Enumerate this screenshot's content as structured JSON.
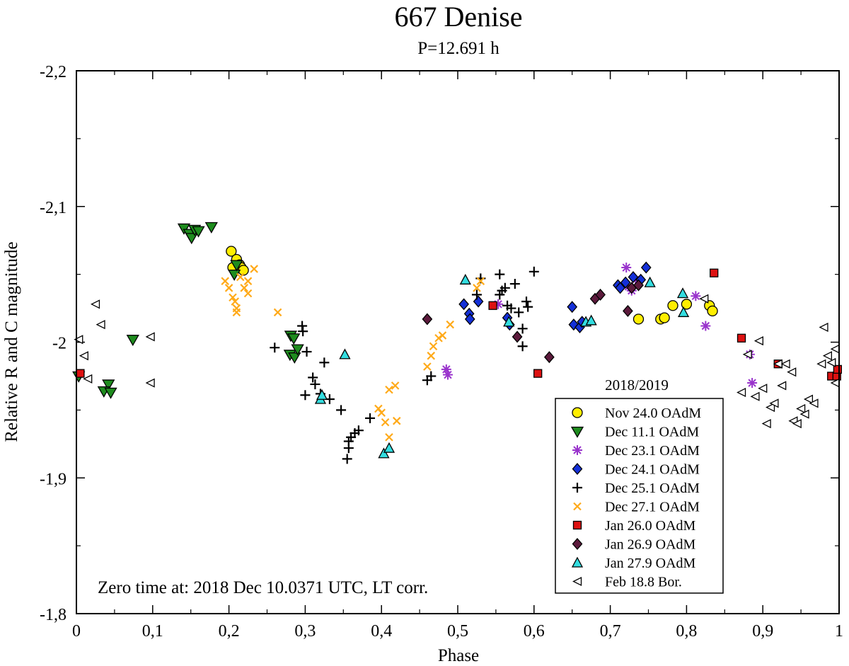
{
  "chart_data": {
    "type": "scatter",
    "title": "667 Denise",
    "subtitle": "P=12.691 h",
    "xlabel": "Phase",
    "ylabel": "Relative R and C magnitude",
    "xlim": [
      0,
      1
    ],
    "ylim": [
      -2.2,
      -1.8
    ],
    "y_inverted_display": true,
    "x_ticks": [
      0,
      0.1,
      0.2,
      0.3,
      0.4,
      0.5,
      0.6,
      0.7,
      0.8,
      0.9,
      1.0
    ],
    "x_tick_labels": [
      "0",
      "0,1",
      "0,2",
      "0,3",
      "0,4",
      "0,5",
      "0,6",
      "0,7",
      "0,8",
      "0,9",
      "1"
    ],
    "y_ticks": [
      -2.2,
      -2.1,
      -2.0,
      -1.9,
      -1.8
    ],
    "y_tick_labels": [
      "-2,2",
      "-2,1",
      "-2",
      "-1,9",
      "-1,8"
    ],
    "annotation": "Zero time at: 2018 Dec 10.0371 UTC, LT corr.",
    "legend": {
      "title": "2018/2019",
      "position": "bottom-right"
    },
    "colors": {
      "yellow": "#ffee00",
      "green": "#1e8c1e",
      "purple": "#9933cc",
      "blue": "#1430d8",
      "black": "#000000",
      "orange": "#ffaa1a",
      "red": "#dd1111",
      "maroon": "#5c1a3c",
      "cyan": "#33dde0",
      "white": "#ffffff"
    },
    "series": [
      {
        "name": "Nov 24.0 OAdM",
        "marker": "circle",
        "color": "#ffee00",
        "points": [
          [
            0.203,
            -2.067
          ],
          [
            0.21,
            -2.061
          ],
          [
            0.214,
            -2.057
          ],
          [
            0.216,
            -2.055
          ],
          [
            0.219,
            -2.053
          ],
          [
            0.205,
            -2.055
          ],
          [
            0.737,
            -2.017
          ],
          [
            0.766,
            -2.017
          ],
          [
            0.771,
            -2.018
          ],
          [
            0.782,
            -2.027
          ],
          [
            0.8,
            -2.028
          ],
          [
            0.83,
            -2.027
          ],
          [
            0.834,
            -2.023
          ]
        ]
      },
      {
        "name": "Dec 11.1 OAdM",
        "marker": "triangle-down",
        "color": "#1e8c1e",
        "points": [
          [
            0.003,
            -1.975
          ],
          [
            0.042,
            -1.969
          ],
          [
            0.036,
            -1.964
          ],
          [
            0.045,
            -1.963
          ],
          [
            0.074,
            -2.002
          ],
          [
            0.141,
            -2.084
          ],
          [
            0.148,
            -2.08
          ],
          [
            0.151,
            -2.077
          ],
          [
            0.155,
            -2.083
          ],
          [
            0.16,
            -2.082
          ],
          [
            0.177,
            -2.085
          ],
          [
            0.207,
            -2.05
          ],
          [
            0.21,
            -2.057
          ],
          [
            0.281,
            -2.005
          ],
          [
            0.285,
            -2.003
          ],
          [
            0.28,
            -1.991
          ],
          [
            0.286,
            -1.989
          ],
          [
            0.29,
            -1.995
          ]
        ]
      },
      {
        "name": "Dec 23.1 OAdM",
        "marker": "asterisk",
        "color": "#9933cc",
        "points": [
          [
            0.485,
            -1.98
          ],
          [
            0.487,
            -1.976
          ],
          [
            0.553,
            -2.028
          ],
          [
            0.721,
            -2.055
          ],
          [
            0.724,
            -2.041
          ],
          [
            0.728,
            -2.038
          ],
          [
            0.733,
            -2.046
          ],
          [
            0.812,
            -2.034
          ],
          [
            0.825,
            -2.012
          ],
          [
            0.883,
            -1.991
          ],
          [
            0.886,
            -1.97
          ]
        ]
      },
      {
        "name": "Dec 24.1 OAdM",
        "marker": "diamond",
        "color": "#1430d8",
        "points": [
          [
            0.508,
            -2.028
          ],
          [
            0.515,
            -2.021
          ],
          [
            0.516,
            -2.017
          ],
          [
            0.527,
            -2.03
          ],
          [
            0.565,
            -2.018
          ],
          [
            0.568,
            -2.013
          ],
          [
            0.65,
            -2.026
          ],
          [
            0.652,
            -2.013
          ],
          [
            0.66,
            -2.011
          ],
          [
            0.663,
            -2.015
          ],
          [
            0.71,
            -2.042
          ],
          [
            0.713,
            -2.04
          ],
          [
            0.72,
            -2.044
          ],
          [
            0.73,
            -2.048
          ],
          [
            0.74,
            -2.046
          ],
          [
            0.747,
            -2.055
          ]
        ]
      },
      {
        "name": "Dec 25.1 OAdM",
        "marker": "plus",
        "color": "#000000",
        "points": [
          [
            0.26,
            -1.996
          ],
          [
            0.296,
            -2.012
          ],
          [
            0.297,
            -2.008
          ],
          [
            0.302,
            -1.993
          ],
          [
            0.31,
            -1.974
          ],
          [
            0.313,
            -1.969
          ],
          [
            0.3,
            -1.961
          ],
          [
            0.32,
            -1.962
          ],
          [
            0.325,
            -1.985
          ],
          [
            0.332,
            -1.958
          ],
          [
            0.347,
            -1.95
          ],
          [
            0.36,
            -1.93
          ],
          [
            0.365,
            -1.933
          ],
          [
            0.37,
            -1.935
          ],
          [
            0.357,
            -1.927
          ],
          [
            0.355,
            -1.914
          ],
          [
            0.357,
            -1.922
          ],
          [
            0.385,
            -1.944
          ],
          [
            0.46,
            -1.972
          ],
          [
            0.465,
            -1.975
          ],
          [
            0.53,
            -2.047
          ],
          [
            0.525,
            -2.035
          ],
          [
            0.555,
            -2.05
          ],
          [
            0.555,
            -2.035
          ],
          [
            0.558,
            -2.038
          ],
          [
            0.562,
            -2.04
          ],
          [
            0.565,
            -2.027
          ],
          [
            0.57,
            -2.025
          ],
          [
            0.575,
            -2.043
          ],
          [
            0.58,
            -2.022
          ],
          [
            0.585,
            -2.01
          ],
          [
            0.585,
            -1.997
          ],
          [
            0.59,
            -2.03
          ],
          [
            0.592,
            -2.026
          ],
          [
            0.6,
            -2.052
          ]
        ]
      },
      {
        "name": "Dec 27.1 OAdM",
        "marker": "x",
        "color": "#ffaa1a",
        "points": [
          [
            0.195,
            -2.045
          ],
          [
            0.2,
            -2.04
          ],
          [
            0.205,
            -2.033
          ],
          [
            0.208,
            -2.03
          ],
          [
            0.21,
            -2.025
          ],
          [
            0.21,
            -2.022
          ],
          [
            0.215,
            -2.048
          ],
          [
            0.22,
            -2.04
          ],
          [
            0.225,
            -2.045
          ],
          [
            0.225,
            -2.036
          ],
          [
            0.233,
            -2.054
          ],
          [
            0.264,
            -2.022
          ],
          [
            0.396,
            -1.951
          ],
          [
            0.4,
            -1.948
          ],
          [
            0.405,
            -1.941
          ],
          [
            0.41,
            -1.965
          ],
          [
            0.41,
            -1.93
          ],
          [
            0.418,
            -1.968
          ],
          [
            0.42,
            -1.942
          ],
          [
            0.46,
            -1.982
          ],
          [
            0.465,
            -1.99
          ],
          [
            0.468,
            -1.997
          ],
          [
            0.475,
            -2.003
          ],
          [
            0.48,
            -2.005
          ],
          [
            0.49,
            -2.013
          ],
          [
            0.525,
            -2.04
          ],
          [
            0.53,
            -2.045
          ]
        ]
      },
      {
        "name": "Jan 26.0 OAdM",
        "marker": "square",
        "color": "#dd1111",
        "points": [
          [
            0.005,
            -1.977
          ],
          [
            0.546,
            -2.027
          ],
          [
            0.605,
            -1.977
          ],
          [
            0.836,
            -2.051
          ],
          [
            0.872,
            -2.003
          ],
          [
            0.92,
            -1.984
          ],
          [
            0.99,
            -1.975
          ],
          [
            0.997,
            -1.975
          ],
          [
            0.998,
            -1.98
          ]
        ]
      },
      {
        "name": "Jan 26.9 OAdM",
        "marker": "diamond",
        "color": "#5c1a3c",
        "points": [
          [
            0.46,
            -2.017
          ],
          [
            0.578,
            -2.004
          ],
          [
            0.62,
            -1.989
          ],
          [
            0.68,
            -2.032
          ],
          [
            0.687,
            -2.035
          ],
          [
            0.723,
            -2.023
          ],
          [
            0.728,
            -2.04
          ],
          [
            0.737,
            -2.042
          ]
        ]
      },
      {
        "name": "Jan 27.9 OAdM",
        "marker": "triangle-up",
        "color": "#33dde0",
        "points": [
          [
            0.32,
            -1.958
          ],
          [
            0.322,
            -1.961
          ],
          [
            0.352,
            -1.991
          ],
          [
            0.403,
            -1.918
          ],
          [
            0.41,
            -1.922
          ],
          [
            0.51,
            -2.046
          ],
          [
            0.567,
            -2.015
          ],
          [
            0.668,
            -2.015
          ],
          [
            0.675,
            -2.016
          ],
          [
            0.752,
            -2.044
          ],
          [
            0.795,
            -2.036
          ],
          [
            0.796,
            -2.022
          ]
        ]
      },
      {
        "name": "Feb 18.8 Bor.",
        "marker": "triangle-left",
        "color": "#ffffff",
        "points": [
          [
            0.003,
            -2.002
          ],
          [
            0.01,
            -1.99
          ],
          [
            0.015,
            -1.973
          ],
          [
            0.025,
            -2.028
          ],
          [
            0.032,
            -2.013
          ],
          [
            0.097,
            -2.004
          ],
          [
            0.097,
            -1.97
          ],
          [
            0.823,
            -2.032
          ],
          [
            0.872,
            -1.963
          ],
          [
            0.88,
            -1.991
          ],
          [
            0.89,
            -1.96
          ],
          [
            0.895,
            -2.001
          ],
          [
            0.9,
            -1.966
          ],
          [
            0.905,
            -1.94
          ],
          [
            0.91,
            -1.952
          ],
          [
            0.915,
            -1.955
          ],
          [
            0.92,
            -1.984
          ],
          [
            0.925,
            -1.968
          ],
          [
            0.93,
            -1.984
          ],
          [
            0.938,
            -1.978
          ],
          [
            0.94,
            -1.942
          ],
          [
            0.945,
            -1.94
          ],
          [
            0.95,
            -1.951
          ],
          [
            0.955,
            -1.947
          ],
          [
            0.96,
            -1.958
          ],
          [
            0.967,
            -1.955
          ],
          [
            0.977,
            -1.984
          ],
          [
            0.98,
            -2.011
          ],
          [
            0.985,
            -1.99
          ],
          [
            0.99,
            -1.985
          ],
          [
            0.995,
            -1.97
          ],
          [
            0.995,
            -1.995
          ]
        ]
      }
    ]
  }
}
